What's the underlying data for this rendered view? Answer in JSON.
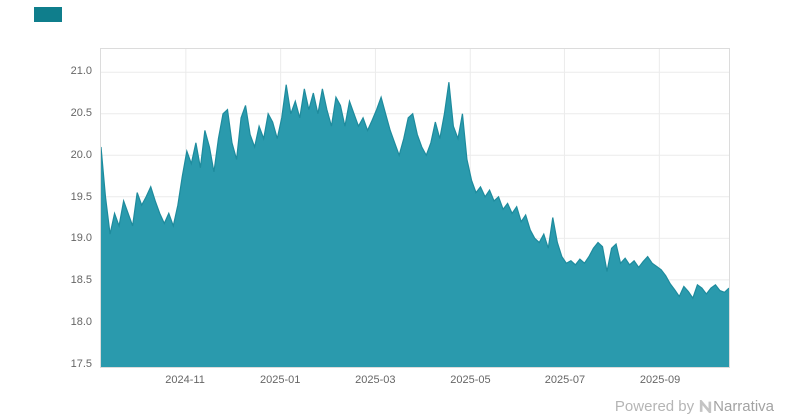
{
  "branding": {
    "powered_by": "Powered by",
    "brand_name": "Narrativa"
  },
  "colors": {
    "area_fill": "#2A9AAD",
    "area_stroke": "#1E8B9D",
    "accent_square": "#0F7E8C",
    "grid": "#EBEBEB",
    "plot_border": "#DCDCDC",
    "axis_text": "#666666",
    "watermark_text": "#B5B5B5",
    "brand_text": "#A3A3A3"
  },
  "chart_data": {
    "type": "area",
    "title": "",
    "xlabel": "",
    "ylabel": "",
    "grid": true,
    "legend_position": "none",
    "ylim": [
      17.45,
      21.28
    ],
    "y_ticks": [
      "17.5",
      "18.0",
      "18.5",
      "19.0",
      "19.5",
      "20.0",
      "20.5",
      "21.0"
    ],
    "x_ticks": [
      {
        "label": "2024-11",
        "pos": 0.135
      },
      {
        "label": "2025-01",
        "pos": 0.286
      },
      {
        "label": "2025-03",
        "pos": 0.437
      },
      {
        "label": "2025-05",
        "pos": 0.588
      },
      {
        "label": "2025-07",
        "pos": 0.738
      },
      {
        "label": "2025-09",
        "pos": 0.889
      }
    ],
    "series": [
      {
        "name": "value",
        "values": [
          20.1,
          19.5,
          19.05,
          19.3,
          19.15,
          19.45,
          19.3,
          19.15,
          19.55,
          19.4,
          19.5,
          19.62,
          19.45,
          19.3,
          19.18,
          19.3,
          19.15,
          19.4,
          19.75,
          20.05,
          19.9,
          20.15,
          19.85,
          20.3,
          20.1,
          19.8,
          20.2,
          20.5,
          20.55,
          20.15,
          19.95,
          20.45,
          20.6,
          20.25,
          20.1,
          20.35,
          20.2,
          20.5,
          20.4,
          20.2,
          20.45,
          20.85,
          20.5,
          20.65,
          20.45,
          20.8,
          20.55,
          20.75,
          20.5,
          20.8,
          20.55,
          20.35,
          20.7,
          20.6,
          20.35,
          20.65,
          20.5,
          20.35,
          20.45,
          20.3,
          20.42,
          20.55,
          20.7,
          20.5,
          20.3,
          20.15,
          20.0,
          20.2,
          20.45,
          20.5,
          20.25,
          20.1,
          20.0,
          20.15,
          20.4,
          20.2,
          20.5,
          20.88,
          20.35,
          20.2,
          20.5,
          19.95,
          19.7,
          19.55,
          19.62,
          19.5,
          19.58,
          19.45,
          19.5,
          19.35,
          19.42,
          19.3,
          19.38,
          19.2,
          19.28,
          19.1,
          19.0,
          18.95,
          19.05,
          18.88,
          19.25,
          18.95,
          18.78,
          18.7,
          18.73,
          18.68,
          18.75,
          18.7,
          18.78,
          18.88,
          18.95,
          18.9,
          18.6,
          18.88,
          18.93,
          18.7,
          18.76,
          18.68,
          18.73,
          18.65,
          18.72,
          18.78,
          18.7,
          18.66,
          18.62,
          18.55,
          18.45,
          18.38,
          18.3,
          18.42,
          18.36,
          18.28,
          18.44,
          18.4,
          18.33,
          18.4,
          18.44,
          18.37,
          18.35,
          18.4
        ]
      }
    ]
  }
}
